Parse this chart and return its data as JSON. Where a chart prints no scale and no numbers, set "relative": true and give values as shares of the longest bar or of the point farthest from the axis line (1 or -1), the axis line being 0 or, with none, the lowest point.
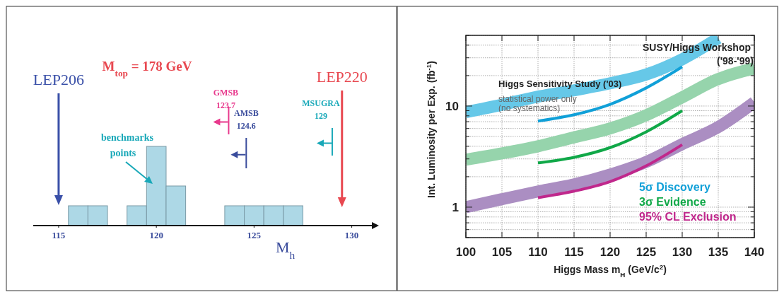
{
  "chart_data": [
    {
      "type": "bar",
      "relative": true,
      "xlabel": "M$_{h}$",
      "x": [
        116,
        117,
        119,
        120,
        121,
        124,
        125,
        126,
        127
      ],
      "values": [
        0.25,
        0.25,
        0.25,
        1,
        0.5,
        0.25,
        0.25,
        0.25,
        0.25
      ],
      "color": "#add8e6",
      "xlim": [
        113.7,
        131.1
      ],
      "xticks": [
        115,
        120,
        125,
        130
      ],
      "ref_lines": [
        {
          "axis": "x",
          "value": 115,
          "label": "LEP206",
          "color": "#3a50a8"
        },
        {
          "axis": "x",
          "value": 123.7,
          "label": "GMSB 123.7",
          "color": "#e8388c"
        },
        {
          "axis": "x",
          "value": 124.6,
          "label": "AMSB 124.6",
          "color": "#3a4c9c"
        },
        {
          "axis": "x",
          "value": 129,
          "label": "MSUGRA 129",
          "color": "#18a8b8"
        },
        {
          "axis": "x",
          "value": 129.5,
          "label": "LEP220",
          "color": "#e84850"
        }
      ],
      "annotations": [
        "M$_{top}$ = 178 GeV",
        "benchmarks points"
      ]
    },
    {
      "type": "line",
      "xlabel": "Higgs Mass m$_{H}$ (GeV/c$^{2}$)",
      "ylabel": "Int. Luminosity per Exp. (fb$^{-1}$)",
      "log": "y",
      "grid": true,
      "legend": "bottom right",
      "xlim": [
        100,
        140
      ],
      "xticks": [
        100,
        105,
        110,
        115,
        120,
        125,
        130,
        135,
        140
      ],
      "ylim": [
        0.5,
        50
      ],
      "yticks": [
        {
          "value": 0.5,
          "label": null
        },
        {
          "value": 0.6,
          "label": null
        },
        {
          "value": 0.7,
          "label": null
        },
        {
          "value": 0.8,
          "label": null
        },
        {
          "value": 0.9,
          "label": null
        },
        1,
        {
          "value": 2,
          "label": null
        },
        {
          "value": 3,
          "label": null
        },
        {
          "value": 4,
          "label": null
        },
        {
          "value": 5,
          "label": null
        },
        {
          "value": 6,
          "label": null
        },
        {
          "value": 7,
          "label": null
        },
        {
          "value": 8,
          "label": null
        },
        {
          "value": 9,
          "label": null
        },
        10,
        {
          "value": 20,
          "label": null
        },
        {
          "value": 30,
          "label": null
        },
        {
          "value": 40,
          "label": null
        },
        {
          "value": 50,
          "label": null
        }
      ],
      "series": [
        {
          "color": "#66c8e8",
          "x": [
            100,
            105,
            110,
            115,
            120,
            125,
            130,
            135
          ],
          "values": [
            8.7,
            10.3,
            12.4,
            14.3,
            16.8,
            20.5,
            29,
            47
          ]
        },
        {
          "color": "#96d4ac",
          "x": [
            100,
            105,
            110,
            115,
            120,
            125,
            130,
            135,
            140
          ],
          "values": [
            2.95,
            3.4,
            4.0,
            4.9,
            6.0,
            8.1,
            12.2,
            18.5,
            23.6
          ]
        },
        {
          "color": "#ab8ec2",
          "x": [
            100,
            105,
            110,
            115,
            120,
            125,
            130,
            135,
            140
          ],
          "values": [
            1.0,
            1.2,
            1.43,
            1.68,
            2.1,
            2.8,
            4.2,
            6.2,
            10.9
          ]
        },
        {
          "name": "5σ Discovery",
          "color": "#10a0d8",
          "x": [
            110,
            115,
            120,
            125,
            130
          ],
          "values": [
            7.1,
            8.2,
            10.4,
            15.1,
            24.4
          ]
        },
        {
          "name": "3σ Evidence",
          "color": "#10a848",
          "x": [
            110,
            115,
            120,
            125,
            130
          ],
          "values": [
            2.74,
            3.11,
            3.88,
            5.56,
            9.0
          ]
        },
        {
          "name": "95% CL Exclusion",
          "color": "#c0288c",
          "x": [
            110,
            115,
            120,
            125,
            130
          ],
          "values": [
            1.24,
            1.44,
            1.79,
            2.56,
            4.15
          ]
        }
      ],
      "annotations": [
        "SUSY/Higgs Workshop ('98-'99)",
        "Higgs Sensitivity Study ('03)",
        "statistical power only (no systematics)"
      ]
    }
  ]
}
